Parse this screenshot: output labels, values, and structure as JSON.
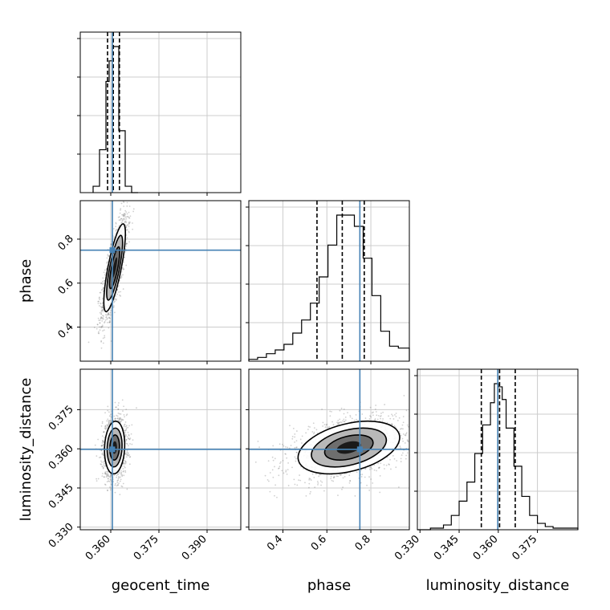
{
  "chart_data": {
    "type": "corner",
    "truth_color": "#4682b4",
    "grid": true,
    "parameters": [
      {
        "name": "geocent_time",
        "truth": 0.3605,
        "quantiles": [
          0.359,
          0.3608,
          0.3627
        ],
        "range": [
          0.3505,
          0.4005
        ],
        "ticks": [
          0.36,
          0.375,
          0.39
        ],
        "tick_labels": [
          "0.360",
          "0.375",
          "0.390"
        ]
      },
      {
        "name": "phase",
        "truth": 0.75,
        "quantiles": [
          0.555,
          0.67,
          0.77
        ],
        "range": [
          0.245,
          0.975
        ],
        "ticks": [
          0.4,
          0.6,
          0.8
        ],
        "tick_labels": [
          "0.4",
          "0.6",
          "0.8"
        ]
      },
      {
        "name": "luminosity_distance",
        "truth": 0.3598,
        "quantiles": [
          0.3535,
          0.3605,
          0.3665
        ],
        "range": [
          0.329,
          0.3905
        ],
        "ticks": [
          0.33,
          0.345,
          0.36,
          0.375
        ],
        "tick_labels": [
          "0.330",
          "0.345",
          "0.360",
          "0.375"
        ]
      }
    ],
    "histograms": [
      {
        "parameter": "geocent_time",
        "bin_edges": [
          0.3545,
          0.3565,
          0.3585,
          0.3595,
          0.3605,
          0.3615,
          0.3625,
          0.3645,
          0.3665,
          0.3685
        ],
        "counts": [
          4,
          27,
          70,
          83,
          92,
          92,
          39,
          4,
          0
        ]
      },
      {
        "parameter": "phase",
        "bin_edges": [
          0.245,
          0.285,
          0.325,
          0.365,
          0.405,
          0.445,
          0.485,
          0.525,
          0.565,
          0.605,
          0.645,
          0.685,
          0.725,
          0.765,
          0.805,
          0.845,
          0.885,
          0.925,
          0.975
        ],
        "counts": [
          1,
          2,
          4,
          6,
          9,
          15,
          22,
          31,
          45,
          62,
          78,
          78,
          72,
          55,
          35,
          16,
          8,
          7
        ]
      },
      {
        "parameter": "luminosity_distance",
        "bin_edges": [
          0.329,
          0.334,
          0.339,
          0.342,
          0.345,
          0.348,
          0.351,
          0.354,
          0.357,
          0.3585,
          0.36,
          0.3615,
          0.363,
          0.366,
          0.369,
          0.372,
          0.375,
          0.378,
          0.381,
          0.3905
        ],
        "counts": [
          0,
          1,
          3,
          9,
          18,
          30,
          48,
          66,
          80,
          92,
          90,
          82,
          64,
          40,
          21,
          9,
          4,
          2,
          1
        ]
      }
    ],
    "contours": [
      {
        "x": "geocent_time",
        "y": "phase",
        "center": [
          0.3612,
          0.67
        ],
        "sigma": [
          0.0016,
          0.095
        ],
        "rho": 0.78
      },
      {
        "x": "geocent_time",
        "y": "luminosity_distance",
        "center": [
          0.3612,
          0.3605
        ],
        "sigma": [
          0.0015,
          0.0048
        ],
        "rho": 0.1
      },
      {
        "x": "phase",
        "y": "luminosity_distance",
        "center": [
          0.7,
          0.3605
        ],
        "sigma": [
          0.11,
          0.0048
        ],
        "rho": 0.38
      }
    ]
  }
}
